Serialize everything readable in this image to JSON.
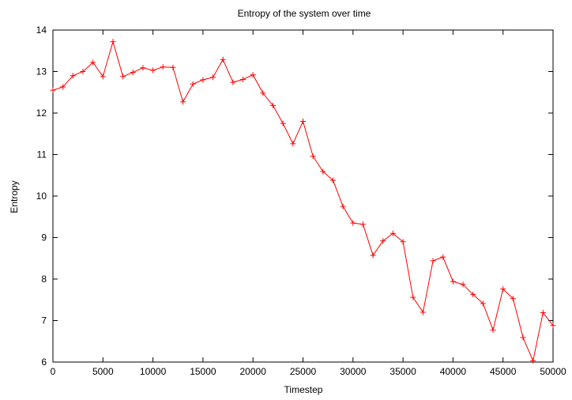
{
  "chart_data": {
    "type": "line",
    "title": "Entropy of the system over time",
    "xlabel": "Timestep",
    "ylabel": "Entropy",
    "xlim": [
      0,
      50000
    ],
    "ylim": [
      6,
      14
    ],
    "xticks": [
      0,
      5000,
      10000,
      15000,
      20000,
      25000,
      30000,
      35000,
      40000,
      45000,
      50000
    ],
    "yticks": [
      6,
      7,
      8,
      9,
      10,
      11,
      12,
      13,
      14
    ],
    "grid": false,
    "legend": "none",
    "marker": "plus",
    "colors": {
      "series": "#ff0000",
      "axes": "#000000"
    },
    "series": [
      {
        "x": [
          0,
          1000,
          2000,
          3000,
          4000,
          5000,
          6000,
          7000,
          8000,
          9000,
          10000,
          11000,
          12000,
          13000,
          14000,
          15000,
          16000,
          17000,
          18000,
          19000,
          20000,
          21000,
          22000,
          23000,
          24000,
          25000,
          26000,
          27000,
          28000,
          29000,
          30000,
          31000,
          32000,
          33000,
          34000,
          35000,
          36000,
          37000,
          38000,
          39000,
          40000,
          41000,
          42000,
          43000,
          44000,
          45000,
          46000,
          47000,
          48000,
          49000,
          50000
        ],
        "values": [
          12.55,
          12.63,
          12.9,
          13.0,
          13.22,
          12.88,
          13.72,
          12.88,
          12.98,
          13.09,
          13.03,
          13.11,
          13.1,
          12.27,
          12.7,
          12.8,
          12.86,
          13.29,
          12.74,
          12.81,
          12.92,
          12.48,
          12.18,
          11.75,
          11.26,
          11.8,
          10.96,
          10.59,
          10.38,
          9.75,
          9.35,
          9.32,
          8.57,
          8.92,
          9.1,
          8.9,
          7.56,
          7.2,
          8.44,
          8.53,
          7.94,
          7.87,
          7.63,
          7.41,
          6.77,
          7.76,
          7.53,
          6.59,
          6.03,
          7.19,
          6.88
        ]
      }
    ]
  }
}
